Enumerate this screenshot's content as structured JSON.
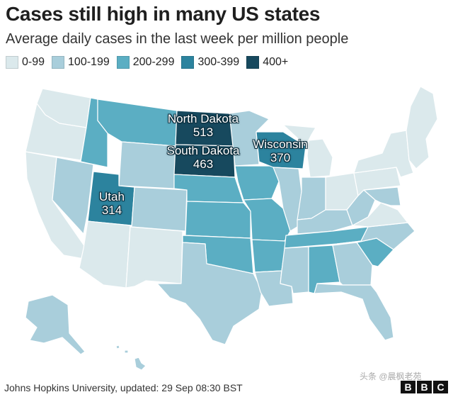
{
  "header": {
    "title": "Cases still high in many US states",
    "subtitle": "Average daily cases in the last week per million people"
  },
  "legend": [
    {
      "label": "0-99",
      "color": "#dbe9ec"
    },
    {
      "label": "100-199",
      "color": "#a9cedb"
    },
    {
      "label": "200-299",
      "color": "#5baec3"
    },
    {
      "label": "300-399",
      "color": "#2c839e"
    },
    {
      "label": "400+",
      "color": "#17495e"
    }
  ],
  "states": {
    "wa": "0-99",
    "or": "0-99",
    "ca": "0-99",
    "nv": "100-199",
    "id": "200-299",
    "mt": "200-299",
    "wy": "100-199",
    "ut": "300-399",
    "az": "0-99",
    "co": "100-199",
    "nm": "0-99",
    "nd": "400+",
    "sd": "400+",
    "ne": "200-299",
    "ks": "200-299",
    "ok": "200-299",
    "tx": "100-199",
    "mn": "100-199",
    "ia": "200-299",
    "mo": "200-299",
    "ar": "200-299",
    "la": "100-199",
    "wi": "300-399",
    "il": "100-199",
    "mi": "0-99",
    "in": "100-199",
    "oh": "0-99",
    "ky": "100-199",
    "tn": "200-299",
    "ms": "100-199",
    "al": "200-299",
    "ga": "100-199",
    "fl": "100-199",
    "sc": "200-299",
    "nc": "100-199",
    "va": "0-99",
    "wv": "100-199",
    "pa": "0-99",
    "ny": "0-99",
    "ne_states": "0-99",
    "md": "100-199",
    "ak": "100-199",
    "hi": "100-199"
  },
  "callouts": {
    "north_dakota": {
      "name": "North Dakota",
      "value": "513"
    },
    "south_dakota": {
      "name": "South Dakota",
      "value": "463"
    },
    "wisconsin": {
      "name": "Wisconsin",
      "value": "370"
    },
    "utah": {
      "name": "Utah",
      "value": "314"
    }
  },
  "footer": {
    "source": "Johns Hopkins University, updated: 29 Sep 08:30 BST",
    "watermark": "头条 @晨枫老苑",
    "brand_letters": [
      "B",
      "B",
      "C"
    ]
  }
}
